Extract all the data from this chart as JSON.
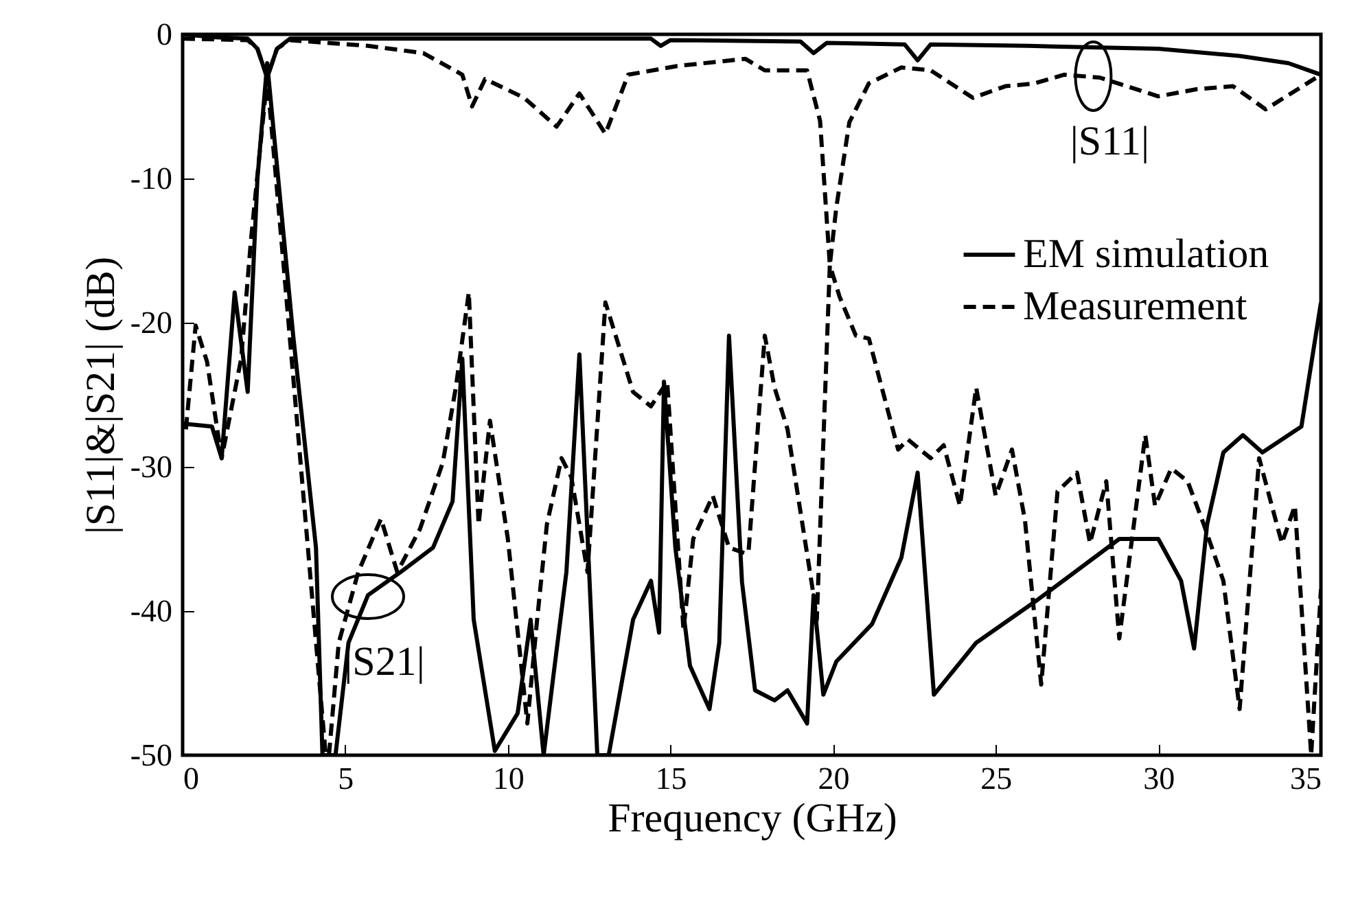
{
  "chart_data": {
    "type": "line",
    "xlabel": "Frequency (GHz)",
    "ylabel": "|S11|&|S21| (dB)",
    "xlim": [
      0,
      35
    ],
    "ylim": [
      -50,
      0
    ],
    "xticks": [
      0,
      5,
      10,
      15,
      20,
      25,
      30,
      35
    ],
    "yticks": [
      -50,
      -40,
      -30,
      -20,
      -10,
      0
    ],
    "legend": "top right",
    "annotations": [
      {
        "text": "|S11|",
        "x": 28,
        "y": -2.9
      },
      {
        "text": "|S21|",
        "x": 5.7,
        "y": -39
      }
    ],
    "series": [
      {
        "color": "#000000",
        "line_style": "solid",
        "x": [
          0,
          1,
          2,
          2.3,
          2.6,
          2.9,
          3.3,
          5,
          10,
          14.4,
          14.7,
          15,
          19,
          19.4,
          19.8,
          22.2,
          22.6,
          23,
          26,
          28,
          30,
          32.5,
          34,
          35
        ],
        "values": [
          0,
          -0.2,
          -0.3,
          -1,
          -3,
          -1,
          -0.3,
          -0.3,
          -0.3,
          -0.3,
          -0.8,
          -0.4,
          -0.5,
          -1.3,
          -0.6,
          -0.7,
          -1.8,
          -0.7,
          -0.8,
          -0.9,
          -1.0,
          -1.5,
          -2.0,
          -2.8
        ]
      },
      {
        "color": "#000000",
        "line_style": "dashed",
        "x": [
          0,
          2,
          2.3,
          2.6,
          2.9,
          3.3,
          5.7,
          7.4,
          8.6,
          8.9,
          9.3,
          10.5,
          11.5,
          12.2,
          13.0,
          13.7,
          15.2,
          17.3,
          17.9,
          19.2,
          19.6,
          19.9,
          20.1,
          20.5,
          21.1,
          22.1,
          23.0,
          24.3,
          25.3,
          26.2,
          27.1,
          28.2,
          30.0,
          31.2,
          32.3,
          33.3,
          35
        ],
        "values": [
          -0.3,
          -0.4,
          -1,
          -3,
          -1,
          -0.4,
          -0.8,
          -1.3,
          -2.8,
          -5.0,
          -3.1,
          -4.4,
          -6.4,
          -4.1,
          -6.9,
          -2.8,
          -2.2,
          -1.7,
          -2.5,
          -2.5,
          -6,
          -16,
          -12,
          -6.1,
          -3.4,
          -2.3,
          -2.5,
          -4.4,
          -3.6,
          -3.4,
          -2.8,
          -3.0,
          -4.3,
          -3.8,
          -3.6,
          -5.2,
          -2.8
        ]
      },
      {
        "name": "EM simulation",
        "color": "#000000",
        "line_style": "solid",
        "x": [
          0,
          0.9,
          1.2,
          1.6,
          2.0,
          2.3,
          2.6,
          3.4,
          4.1,
          4.3,
          4.7,
          5.1,
          5.7,
          6.7,
          7.7,
          8.3,
          8.6,
          8.95,
          9.6,
          10.3,
          10.7,
          11.1,
          11.4,
          11.8,
          12.2,
          12.5,
          12.75,
          13.1,
          13.85,
          14.4,
          14.65,
          14.8,
          15.15,
          15.6,
          16.2,
          16.5,
          16.8,
          17.2,
          17.6,
          18.2,
          18.6,
          19.2,
          19.4,
          19.7,
          20.1,
          21.2,
          22.1,
          22.6,
          23.1,
          24.4,
          26.3,
          28.8,
          30.0,
          30.7,
          31.1,
          31.5,
          32.0,
          32.6,
          33.2,
          34.4,
          35
        ],
        "values": [
          -27,
          -27.2,
          -29.4,
          -17.9,
          -24.8,
          -10,
          -2,
          -20.9,
          -35.6,
          -50,
          -50,
          -42.2,
          -38.9,
          -37.3,
          -35.6,
          -32.4,
          -22.5,
          -40.6,
          -49.7,
          -47.1,
          -40.6,
          -50,
          -44.5,
          -37.3,
          -22.2,
          -37.3,
          -50,
          -50,
          -40.6,
          -37.9,
          -41.5,
          -24.1,
          -35.6,
          -43.8,
          -46.8,
          -42.2,
          -20.9,
          -38,
          -45.5,
          -46.2,
          -45.5,
          -47.8,
          -38.9,
          -45.8,
          -43.5,
          -40.9,
          -36.3,
          -30.4,
          -45.8,
          -42.2,
          -39.2,
          -35.0,
          -35.0,
          -37.9,
          -42.6,
          -34.0,
          -29.0,
          -27.8,
          -29.0,
          -27.2,
          -18.6
        ]
      },
      {
        "name": "Measurement",
        "color": "#000000",
        "line_style": "dashed",
        "x": [
          0.1,
          0.4,
          0.75,
          1.2,
          1.8,
          2.1,
          2.6,
          3.1,
          4.4,
          4.5,
          4.8,
          5.4,
          6.1,
          6.6,
          7.3,
          8.0,
          8.4,
          8.8,
          9.1,
          9.45,
          10.0,
          10.6,
          10.9,
          11.2,
          11.65,
          11.95,
          12.45,
          13.0,
          13.85,
          14.4,
          14.9,
          15.4,
          15.7,
          16.3,
          16.8,
          17.3,
          17.4,
          17.9,
          18.2,
          18.6,
          19.4,
          19.5,
          19.9,
          20.2,
          20.7,
          21.1,
          22.0,
          22.3,
          23.0,
          23.4,
          23.9,
          24.4,
          25.0,
          25.5,
          25.9,
          26.4,
          26.9,
          27.5,
          27.9,
          28.4,
          28.8,
          29.6,
          29.9,
          30.4,
          30.9,
          31.4,
          32.0,
          32.5,
          33.1,
          33.8,
          34.2,
          34.7,
          35
        ],
        "values": [
          -27.4,
          -20.2,
          -22.7,
          -29.4,
          -22.5,
          -14.3,
          -3,
          -15.9,
          -50,
          -50,
          -42.2,
          -37.3,
          -33.6,
          -37.3,
          -34.3,
          -29.7,
          -24.5,
          -17.9,
          -34.0,
          -26.8,
          -35.0,
          -47.8,
          -40.6,
          -34.0,
          -29.4,
          -30.7,
          -37.3,
          -18.6,
          -24.8,
          -25.8,
          -24.1,
          -41.3,
          -35.0,
          -32.0,
          -35.6,
          -36.0,
          -35.9,
          -20.9,
          -24.5,
          -27.4,
          -38.9,
          -40.6,
          -16,
          -18.2,
          -20.9,
          -21.1,
          -28.8,
          -28.1,
          -29.4,
          -28.5,
          -32.7,
          -24.5,
          -32.0,
          -28.8,
          -33.7,
          -45.1,
          -31.7,
          -30.4,
          -35.3,
          -31.0,
          -41.9,
          -27.8,
          -32.7,
          -30.1,
          -31.0,
          -34.0,
          -37.9,
          -46.8,
          -29.4,
          -35.3,
          -32.7,
          -50,
          -38.5
        ]
      }
    ]
  }
}
